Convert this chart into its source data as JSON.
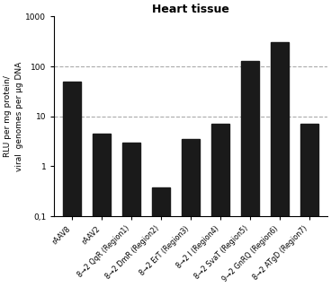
{
  "title": "Heart tissue",
  "categories": [
    "rAAV8",
    "rAAV2",
    "8→2 QqR (Region1)",
    "8→2 DmR (Region2)",
    "8→2 ErT (Region3)",
    "8→2 I (Region4)",
    "8→2 SvaT (Region5)",
    "9→2 GnRQ (Region6)",
    "8→2 ATgD (Region7)"
  ],
  "values": [
    50,
    4.5,
    3.0,
    0.38,
    3.5,
    7.0,
    130,
    300,
    7.0
  ],
  "bar_color": "#1a1a1a",
  "ylabel_line1": "RLU per mg protein/",
  "ylabel_line2": "viral  genomes per μg DNA",
  "ylim_min": 0.1,
  "ylim_max": 1000,
  "yticks": [
    0.1,
    1,
    10,
    100,
    1000
  ],
  "ytick_labels": [
    "0,1",
    "1",
    "10",
    "100",
    "1000"
  ],
  "dashed_lines": [
    10,
    100
  ],
  "title_fontsize": 9,
  "label_fontsize": 6.5,
  "tick_fontsize": 6.5,
  "xtick_fontsize": 5.8,
  "bar_width": 0.6
}
